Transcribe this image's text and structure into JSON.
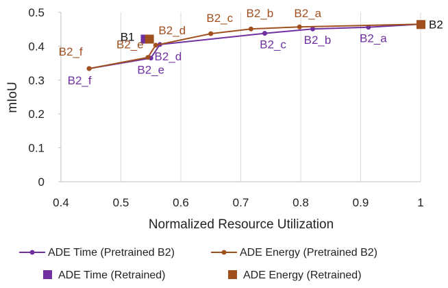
{
  "colors": {
    "time": "#7030A0",
    "energy": "#A0501E",
    "grid": "#d9d9d9",
    "axis": "#bfbfbf"
  },
  "chart_data": {
    "type": "scatter",
    "xlabel": "Normalized Resource Utilization",
    "ylabel": "mIoU",
    "xlim": [
      0.4,
      1.0
    ],
    "ylim": [
      0,
      0.5
    ],
    "x_ticks": [
      "0.4",
      "0.5",
      "0.6",
      "0.7",
      "0.8",
      "0.9",
      "1"
    ],
    "y_ticks": [
      "0",
      "0.1",
      "0.2",
      "0.3",
      "0.4",
      "0.5"
    ],
    "grid": "vertical",
    "legend_position": "bottom",
    "series": [
      {
        "name": "ADE Time (Pretrained B2)",
        "color_key": "time",
        "marker": "dot-line",
        "points": [
          {
            "label": "B2_f",
            "x": 0.447,
            "y": 0.334
          },
          {
            "label": "B2_e",
            "x": 0.55,
            "y": 0.365
          },
          {
            "label": "B2_d",
            "x": 0.565,
            "y": 0.405
          },
          {
            "label": "B2_c",
            "x": 0.74,
            "y": 0.438
          },
          {
            "label": "B2_b",
            "x": 0.82,
            "y": 0.451
          },
          {
            "label": "B2_a",
            "x": 0.913,
            "y": 0.456
          },
          {
            "label": "B2",
            "x": 1.0,
            "y": 0.465
          }
        ]
      },
      {
        "name": "ADE Energy (Pretrained B2)",
        "color_key": "energy",
        "marker": "dot-line",
        "points": [
          {
            "label": "B2_f",
            "x": 0.447,
            "y": 0.334
          },
          {
            "label": "B2_e",
            "x": 0.545,
            "y": 0.367
          },
          {
            "label": "B2_d",
            "x": 0.558,
            "y": 0.403
          },
          {
            "label": "B2_c",
            "x": 0.65,
            "y": 0.437
          },
          {
            "label": "B2_b",
            "x": 0.717,
            "y": 0.451
          },
          {
            "label": "B2_a",
            "x": 0.798,
            "y": 0.457
          },
          {
            "label": "B2",
            "x": 1.0,
            "y": 0.465
          }
        ]
      },
      {
        "name": "ADE Time (Retrained)",
        "color_key": "time",
        "marker": "square",
        "points": [
          {
            "label": "",
            "x": 0.54,
            "y": 0.422
          }
        ]
      },
      {
        "name": "ADE Energy (Retrained)",
        "color_key": "energy",
        "marker": "square",
        "points": [
          {
            "label": "",
            "x": 0.547,
            "y": 0.422
          }
        ]
      }
    ],
    "annotations": [
      {
        "text": "B1",
        "x": 0.54,
        "y": 0.422,
        "series": "retrained"
      },
      {
        "text": "B2",
        "x": 1.0,
        "y": 0.465,
        "series": "b2"
      }
    ]
  }
}
